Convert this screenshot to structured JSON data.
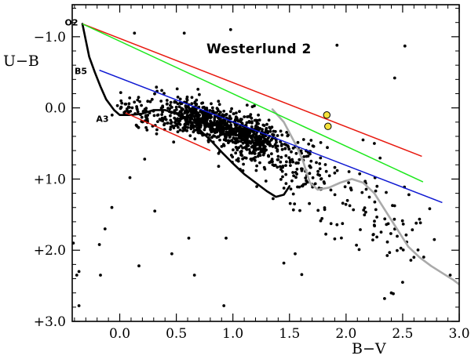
{
  "chart_data": {
    "type": "scatter",
    "title": "Westerlund 2",
    "xlabel": "B−V",
    "ylabel": "U−B",
    "xlim": [
      -0.42,
      3.0
    ],
    "ylim": [
      3.0,
      -1.45
    ],
    "y_inverted": true,
    "x_ticks": [
      {
        "value": 0.0,
        "label": "0.0"
      },
      {
        "value": 0.5,
        "label": "0.5"
      },
      {
        "value": 1.0,
        "label": "1.0"
      },
      {
        "value": 1.5,
        "label": "1.5"
      },
      {
        "value": 2.0,
        "label": "2.0"
      },
      {
        "value": 2.5,
        "label": "2.5"
      },
      {
        "value": 3.0,
        "label": "3.0"
      }
    ],
    "y_ticks": [
      {
        "value": -1.0,
        "label": "−1.0"
      },
      {
        "value": 0.0,
        "label": "0.0"
      },
      {
        "value": 1.0,
        "label": "+1.0"
      },
      {
        "value": 2.0,
        "label": "+2.0"
      },
      {
        "value": 3.0,
        "label": "+3.0"
      }
    ],
    "annotations": [
      {
        "text": "O2",
        "x": -0.34,
        "y": -1.2
      },
      {
        "text": "B5",
        "x": -0.26,
        "y": -0.52
      },
      {
        "text": "A3",
        "x": -0.07,
        "y": 0.15
      }
    ],
    "colors": {
      "reddening_o2": "#e8190f",
      "reddening_mid": "#1ee81e",
      "reddening_b5": "#0f19d2",
      "a3_line": "#e8190f",
      "intrinsic_dwarf": "#000000",
      "intrinsic_giant": "#aaaaaa",
      "stars": "#000000",
      "highlight_fill": "#f5e23c"
    },
    "lines": [
      {
        "role": "reddening-o2",
        "x": [
          -0.33,
          2.67
        ],
        "y": [
          -1.18,
          0.68
        ]
      },
      {
        "role": "reddening-mid",
        "x": [
          -0.33,
          2.68
        ],
        "y": [
          -1.18,
          1.04
        ]
      },
      {
        "role": "reddening-b5",
        "x": [
          -0.18,
          2.85
        ],
        "y": [
          -0.53,
          1.33
        ]
      },
      {
        "role": "reddening-a3",
        "x": [
          0.05,
          0.8
        ],
        "y": [
          0.07,
          0.6
        ]
      }
    ],
    "curves": [
      {
        "role": "intrinsic-dwarf",
        "x": [
          -0.33,
          -0.3,
          -0.27,
          -0.22,
          -0.17,
          -0.12,
          -0.05,
          0.0,
          0.1,
          0.2,
          0.3,
          0.4,
          0.5,
          0.6,
          0.7,
          0.8,
          0.9,
          1.0,
          1.1,
          1.2,
          1.3,
          1.38,
          1.45,
          1.5
        ],
        "y": [
          -1.18,
          -0.95,
          -0.72,
          -0.5,
          -0.3,
          -0.12,
          0.03,
          0.1,
          0.1,
          0.08,
          0.03,
          0.03,
          0.08,
          0.18,
          0.3,
          0.45,
          0.62,
          0.78,
          0.93,
          1.05,
          1.17,
          1.25,
          1.22,
          1.1
        ]
      },
      {
        "role": "intrinsic-giant",
        "x": [
          1.35,
          1.45,
          1.55,
          1.62,
          1.68,
          1.75,
          1.85,
          1.95,
          2.05,
          2.15,
          2.25,
          2.35,
          2.45,
          2.55,
          2.65,
          2.75,
          2.85,
          2.95,
          3.0
        ],
        "y": [
          0.02,
          0.2,
          0.5,
          0.75,
          1.05,
          1.15,
          1.12,
          1.05,
          1.0,
          1.05,
          1.2,
          1.45,
          1.7,
          1.95,
          2.1,
          2.22,
          2.32,
          2.42,
          2.48
        ]
      }
    ],
    "highlighted_points": [
      {
        "x": 1.83,
        "y": 0.1
      },
      {
        "x": 1.84,
        "y": 0.26
      }
    ],
    "isolated_points": [
      {
        "x": 0.13,
        "y": -1.05
      },
      {
        "x": 0.57,
        "y": -1.05
      },
      {
        "x": 0.98,
        "y": -1.1
      },
      {
        "x": 2.52,
        "y": -0.87
      },
      {
        "x": 2.43,
        "y": -0.42
      },
      {
        "x": 1.92,
        "y": -0.88
      },
      {
        "x": -0.41,
        "y": 1.9
      },
      {
        "x": -0.38,
        "y": 2.35
      },
      {
        "x": -0.36,
        "y": 2.3
      },
      {
        "x": -0.36,
        "y": 2.78
      },
      {
        "x": -0.18,
        "y": 1.92
      },
      {
        "x": -0.17,
        "y": 2.35
      },
      {
        "x": -0.13,
        "y": 1.7
      },
      {
        "x": -0.07,
        "y": 1.4
      },
      {
        "x": 0.17,
        "y": 2.22
      },
      {
        "x": 0.31,
        "y": 1.45
      },
      {
        "x": 0.46,
        "y": 2.05
      },
      {
        "x": 0.66,
        "y": 2.35
      },
      {
        "x": 0.92,
        "y": 2.78
      },
      {
        "x": 0.94,
        "y": 1.83
      },
      {
        "x": 0.61,
        "y": 1.83
      },
      {
        "x": 1.45,
        "y": 2.18
      },
      {
        "x": 1.55,
        "y": 2.05
      },
      {
        "x": 2.6,
        "y": 2.1
      },
      {
        "x": 2.78,
        "y": 1.85
      },
      {
        "x": 2.62,
        "y": 1.62
      },
      {
        "x": 2.4,
        "y": 2.6
      },
      {
        "x": 2.34,
        "y": 2.68
      },
      {
        "x": 2.5,
        "y": 2.45
      },
      {
        "x": 2.15,
        "y": 0.45
      },
      {
        "x": 2.25,
        "y": 0.5
      },
      {
        "x": 0.22,
        "y": 0.72
      },
      {
        "x": 0.09,
        "y": 0.98
      },
      {
        "x": 2.92,
        "y": 2.35
      }
    ],
    "cluster_generator": {
      "count": 1180,
      "seed": 7,
      "main_center": [
        0.9,
        0.3
      ],
      "note": "dense population: main sequence + reddened members around B-V 0.5-1.5"
    }
  }
}
